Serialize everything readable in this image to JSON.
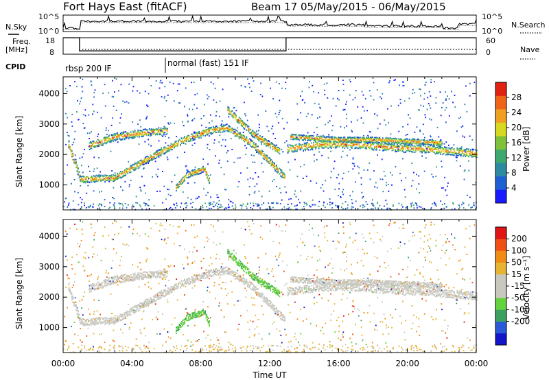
{
  "chart_data": {
    "type": "heatmap",
    "title": "Fort Hays East (fitACF)",
    "subtitle": "Beam 17 05/May/2015 - 06/May/2015",
    "xlabel": "Time UT",
    "x_ticks": [
      "00:00",
      "04:00",
      "08:00",
      "12:00",
      "16:00",
      "20:00",
      "00:00"
    ],
    "xlim_hours": [
      0,
      24
    ],
    "status_panels": {
      "nsky": {
        "label": "N.Sky",
        "tick_labels": [
          "10^5",
          "10^0"
        ],
        "right_label": "N.Search",
        "right_tick_labels": [
          "10^5",
          "10^0"
        ]
      },
      "freq": {
        "label_top": "Freq.",
        "label_bottom": "[MHz]",
        "tick_labels": [
          "18",
          "8"
        ],
        "right_label": "Nave",
        "right_tick_labels": [
          "60",
          "0"
        ],
        "steps": [
          {
            "t": 0.0,
            "v": 18
          },
          {
            "t": 0.95,
            "v": 10
          },
          {
            "t": 12.95,
            "v": 18
          },
          {
            "t": 24.0,
            "v": 18
          }
        ]
      },
      "cpid": {
        "label": "CPID",
        "segments": [
          {
            "label": "rbsp 200 IF",
            "start": 0,
            "end": 6
          },
          {
            "label": "normal (fast) 151 IF",
            "start": 6,
            "end": 24
          }
        ]
      }
    },
    "power_panel": {
      "ylabel": "Slant Range [km]",
      "yticks": [
        1000,
        2000,
        3000,
        4000
      ],
      "ylim": [
        180,
        4550
      ],
      "colorbar": {
        "label": "Power [dB]",
        "ticks": [
          "4",
          "8",
          "12",
          "16",
          "20",
          "24",
          "28"
        ],
        "colors": [
          "#1a1aff",
          "#1e5fd4",
          "#2e8aa0",
          "#3da96e",
          "#7fc23a",
          "#d8d820",
          "#f0a020",
          "#f06418",
          "#e02010"
        ]
      }
    },
    "velocity_panel": {
      "ylabel": "Slant Range [km]",
      "yticks": [
        1000,
        2000,
        3000,
        4000
      ],
      "ylim": [
        180,
        4550
      ],
      "colorbar": {
        "label": "Velocity [m s⁻¹]",
        "ticks": [
          "200",
          "100",
          "50",
          "15",
          "-15",
          "-50",
          "-100",
          "-200"
        ],
        "colors": [
          "#1414c8",
          "#2a5ad8",
          "#3ca060",
          "#64d23c",
          "#c8c8c0",
          "#c8c8c0",
          "#e6b432",
          "#f08c14",
          "#f05014",
          "#e01414"
        ]
      }
    },
    "bands": [
      {
        "name": "dense_band",
        "points": [
          [
            0.3,
            2350
          ],
          [
            1,
            1200
          ],
          [
            3,
            1250
          ],
          [
            5,
            1900
          ],
          [
            7,
            2500
          ],
          [
            8.5,
            2800
          ],
          [
            9.5,
            2900
          ],
          [
            11,
            2350
          ],
          [
            12.9,
            1250
          ]
        ],
        "width": 230
      },
      {
        "name": "upper_diffuse",
        "points": [
          [
            1.5,
            2300
          ],
          [
            3,
            2600
          ],
          [
            5,
            2750
          ],
          [
            6,
            2800
          ]
        ],
        "width": 250
      },
      {
        "name": "descending_track",
        "points": [
          [
            9.5,
            3500
          ],
          [
            11,
            2700
          ],
          [
            12.6,
            2100
          ]
        ],
        "width": 220
      },
      {
        "name": "afternoon_band",
        "points": [
          [
            13,
            2200
          ],
          [
            15,
            2350
          ],
          [
            17,
            2350
          ],
          [
            19,
            2250
          ],
          [
            21,
            2200
          ],
          [
            24,
            2050
          ]
        ],
        "width": 260
      },
      {
        "name": "lower_blob",
        "points": [
          [
            6.5,
            900
          ],
          [
            7.2,
            1350
          ],
          [
            8.2,
            1550
          ],
          [
            8.5,
            1100
          ]
        ],
        "width": 200
      },
      {
        "name": "late_band",
        "points": [
          [
            13.2,
            2600
          ],
          [
            16,
            2500
          ],
          [
            18,
            2500
          ],
          [
            22,
            2400
          ]
        ],
        "width": 180
      }
    ]
  }
}
